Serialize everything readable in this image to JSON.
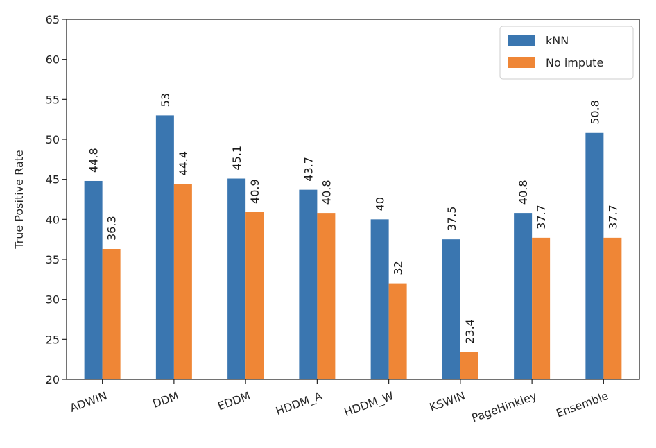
{
  "chart_data": {
    "type": "bar",
    "categories": [
      "ADWIN",
      "DDM",
      "EDDM",
      "HDDM_A",
      "HDDM_W",
      "KSWIN",
      "PageHinkley",
      "Ensemble"
    ],
    "series": [
      {
        "name": "kNN",
        "color": "#3a76b0",
        "values": [
          44.8,
          53,
          45.1,
          43.7,
          40,
          37.5,
          40.8,
          50.8
        ],
        "labels": [
          "44.8",
          "53",
          "45.1",
          "43.7",
          "40",
          "37.5",
          "40.8",
          "50.8"
        ]
      },
      {
        "name": "No impute",
        "color": "#ef8636",
        "values": [
          36.3,
          44.4,
          40.9,
          40.8,
          32,
          23.4,
          37.7,
          37.7
        ],
        "labels": [
          "36.3",
          "44.4",
          "40.9",
          "40.8",
          "32",
          "23.4",
          "37.7",
          "37.7"
        ]
      }
    ],
    "ylabel": "True Positive Rate",
    "ylim": [
      20,
      65
    ],
    "yticks": [
      "20",
      "25",
      "30",
      "35",
      "40",
      "45",
      "50",
      "55",
      "60",
      "65"
    ],
    "grid": false,
    "legend_position": "top-right"
  }
}
